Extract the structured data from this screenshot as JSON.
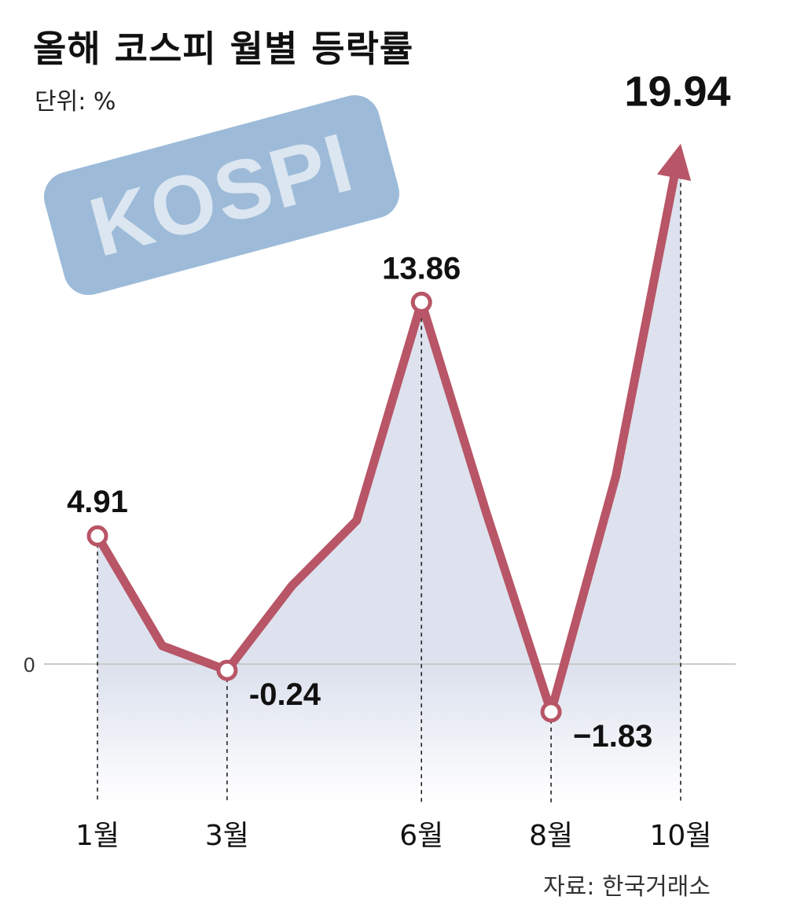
{
  "title": "올해 코스피 월별 등락률",
  "unit_label": "단위: %",
  "badge_text": "KOSPI",
  "source": "자료: 한국거래소",
  "colors": {
    "line": "#b85566",
    "area_top": "#dde2ee",
    "badge_bg": "#9dbbd9",
    "badge_text": "#dce6f0",
    "zero_line": "#c8c8c8"
  },
  "chart_data": {
    "type": "line",
    "x": [
      1,
      2,
      3,
      4,
      5,
      6,
      7,
      8,
      9,
      10
    ],
    "values": [
      4.91,
      0.7,
      -0.24,
      3.0,
      5.5,
      13.86,
      5.8,
      -1.83,
      7.2,
      19.94
    ],
    "labeled_points": [
      {
        "month": 1,
        "value": 4.91,
        "label": "4.91"
      },
      {
        "month": 3,
        "value": -0.24,
        "label": "-0.24"
      },
      {
        "month": 6,
        "value": 13.86,
        "label": "13.86"
      },
      {
        "month": 8,
        "value": -1.83,
        "label": "−1.83"
      },
      {
        "month": 10,
        "value": 19.94,
        "label": "19.94"
      }
    ],
    "x_tick_labels": [
      {
        "month": 1,
        "label": "1월"
      },
      {
        "month": 3,
        "label": "3월"
      },
      {
        "month": 6,
        "label": "6월"
      },
      {
        "month": 8,
        "label": "8월"
      },
      {
        "month": 10,
        "label": "10월"
      }
    ],
    "zero_label": "0",
    "final_marker": "arrow",
    "ylim": [
      -5.3,
      20.5
    ]
  }
}
